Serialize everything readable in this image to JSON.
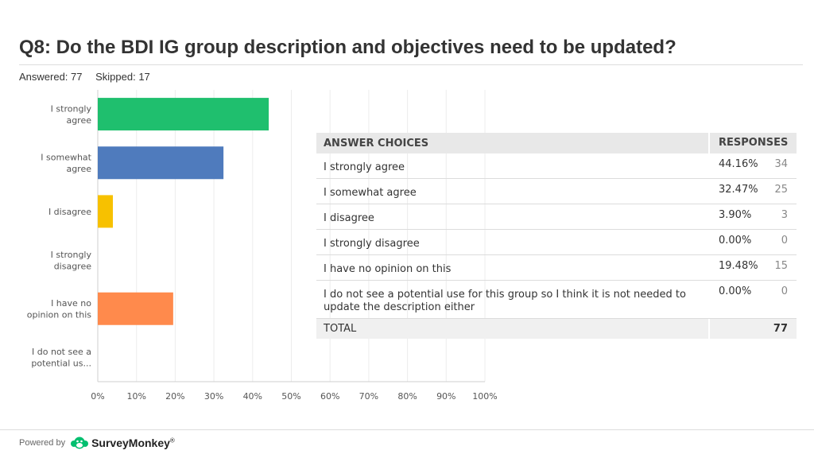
{
  "header": {
    "title": "Q8: Do the BDI IG group description and objectives need to be updated?",
    "answered": "Answered: 77",
    "skipped": "Skipped: 17"
  },
  "chart_data": {
    "type": "bar",
    "orientation": "horizontal",
    "categories": [
      "I strongly agree",
      "I somewhat agree",
      "I disagree",
      "I strongly disagree",
      "I have no opinion on this",
      "I do not see a potential us..."
    ],
    "values": [
      44.16,
      32.47,
      3.9,
      0.0,
      19.48,
      0.0
    ],
    "xlim": [
      0,
      100
    ],
    "x_ticks": [
      "0%",
      "10%",
      "20%",
      "30%",
      "40%",
      "50%",
      "60%",
      "70%",
      "80%",
      "90%",
      "100%"
    ],
    "grid": true,
    "colors": [
      "#1fbf6e",
      "#4f7bbd",
      "#f7c100",
      "#e6b0c4",
      "#ff8a4c",
      "#8c8c8c"
    ]
  },
  "table": {
    "header_choice": "ANSWER CHOICES",
    "header_responses": "RESPONSES",
    "rows": [
      {
        "choice": "I strongly agree",
        "pct": "44.16%",
        "count": "34"
      },
      {
        "choice": "I somewhat agree",
        "pct": "32.47%",
        "count": "25"
      },
      {
        "choice": "I disagree",
        "pct": "3.90%",
        "count": "3"
      },
      {
        "choice": "I strongly disagree",
        "pct": "0.00%",
        "count": "0"
      },
      {
        "choice": "I have no opinion on this",
        "pct": "19.48%",
        "count": "15"
      },
      {
        "choice": "I do not see a potential use for this group so I think it is not needed to update the description either",
        "pct": "0.00%",
        "count": "0"
      }
    ],
    "total_label": "TOTAL",
    "total_value": "77"
  },
  "footer": {
    "powered_by": "Powered by",
    "brand": "SurveyMonkey",
    "brand_mark": "®"
  }
}
